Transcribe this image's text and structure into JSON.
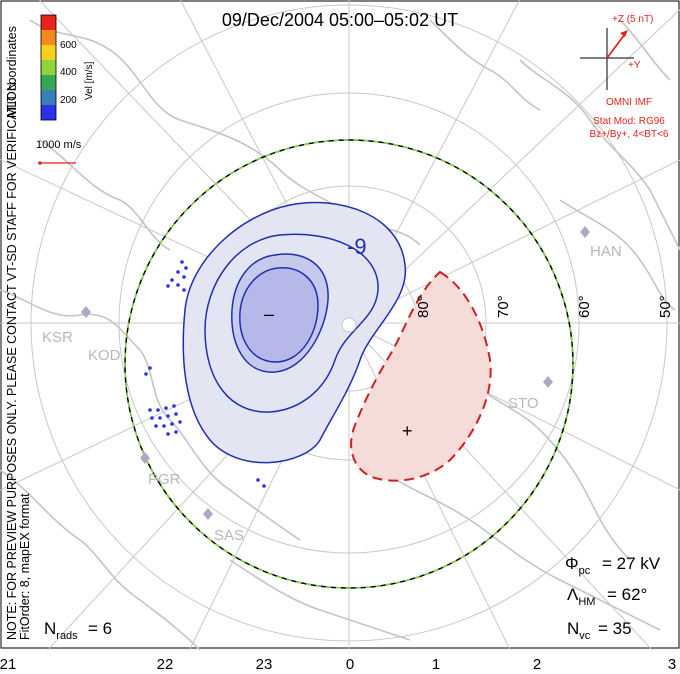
{
  "title": "09/Dec/2004 05:00–05:02 UT",
  "side_note_1": "NOTE: FOR PREVIEW PURPOSES ONLY. PLEASE CONTACT VT-SD STAFF FOR VERIFICATION.",
  "side_note_2": "FitOrder: 8, mapEX format",
  "coord_system": "MLT coordinates",
  "velocity_scale": {
    "unit_label": "Vel [m/s]",
    "ticks": [
      "600",
      "400",
      "200"
    ],
    "colors": [
      "#e8231b",
      "#f08a1c",
      "#f4d11f",
      "#8ed43a",
      "#34a857",
      "#3a7db8",
      "#2b2fe6"
    ],
    "reference_label": "1000 m/s"
  },
  "imf": {
    "z_label": "+Z (5 nT)",
    "y_label": "+Y",
    "source": "OMNI IMF",
    "stat_mod": "Stat Mod: RG96",
    "conditions": "Bz+/By+, 4<BT<6",
    "color": "#e2231a"
  },
  "stats": {
    "phi_label": "Φ",
    "phi_sub": "pc",
    "phi_value": "= 27 kV",
    "lambda_label": "Λ",
    "lambda_sub": "HM",
    "lambda_value": "= 62°",
    "nvc_label": "N",
    "nvc_sub": "vc",
    "nvc_value": "= 35",
    "nrads_label": "N",
    "nrads_sub": "rads",
    "nrads_value": "= 6"
  },
  "mlt_axis": [
    "21",
    "22",
    "23",
    "0",
    "1",
    "2",
    "3"
  ],
  "latitude_labels": [
    "80°",
    "70°",
    "60°",
    "50°"
  ],
  "stations": [
    "HAN",
    "KSR",
    "KOD",
    "STO",
    "PGR",
    "SAS"
  ],
  "contour_labels": {
    "neg_value": "-9",
    "neg_marker": "–",
    "pos_marker": "+"
  },
  "colors": {
    "negative_cell": "#1f2fb5",
    "negative_fill": "#e3e5f2",
    "negative_core": "#b5b8e8",
    "positive_cell": "#cc2020",
    "positive_fill": "#f6dcd8",
    "grid": "#c8c8c8",
    "land": "#c4c4c4",
    "boundary_green": "#7ddc3a"
  }
}
